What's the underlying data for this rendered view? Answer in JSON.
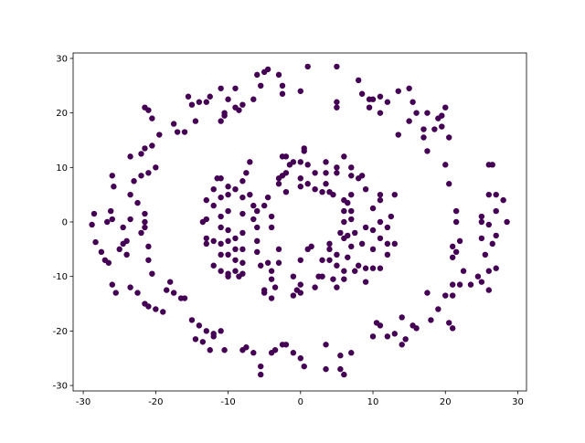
{
  "chart_data": {
    "type": "scatter",
    "title": "",
    "xlabel": "",
    "ylabel": "",
    "xlim": [
      -31.4,
      31.2
    ],
    "ylim": [
      -31,
      31
    ],
    "xticks": [
      "-30",
      "-20",
      "-10",
      "0",
      "10",
      "20",
      "30"
    ],
    "yticks": [
      "-30",
      "-20",
      "-10",
      "0",
      "10",
      "20",
      "30"
    ],
    "grid": false,
    "marker_color": "#440154",
    "points": [
      [
        -28.5,
        1.5
      ],
      [
        -28.8,
        -0.5
      ],
      [
        -28.3,
        -3.7
      ],
      [
        -27.5,
        -5.5
      ],
      [
        -27,
        -7
      ],
      [
        -26.5,
        -7.5
      ],
      [
        -26.7,
        0
      ],
      [
        -26,
        0.5
      ],
      [
        -26.2,
        2
      ],
      [
        -25.8,
        6.5
      ],
      [
        -26,
        8.5
      ],
      [
        -24.5,
        -4
      ],
      [
        -25,
        -5
      ],
      [
        -24,
        -3.5
      ],
      [
        -23.5,
        0.5
      ],
      [
        -23.5,
        5
      ],
      [
        -23.5,
        12
      ],
      [
        -22,
        12.5
      ],
      [
        -22,
        8.5
      ],
      [
        -21.5,
        13.5
      ],
      [
        -20.5,
        14
      ],
      [
        -20,
        10
      ],
      [
        -21,
        9
      ],
      [
        -22.5,
        3.5
      ],
      [
        -21.5,
        1.5
      ],
      [
        -21.5,
        0
      ],
      [
        -21.5,
        -1
      ],
      [
        -22,
        -2
      ],
      [
        -21,
        -4.5
      ],
      [
        -21,
        -7
      ],
      [
        -20.5,
        -9.5
      ],
      [
        -26,
        -11.5
      ],
      [
        -25.5,
        -13
      ],
      [
        -23.5,
        -12
      ],
      [
        -22.5,
        -13
      ],
      [
        -21.5,
        -15
      ],
      [
        -21,
        -15.5
      ],
      [
        -20,
        -16
      ],
      [
        -19,
        -16.5
      ],
      [
        -18.5,
        -12.5
      ],
      [
        -18,
        -11
      ],
      [
        -17.5,
        -13
      ],
      [
        -16.5,
        -14
      ],
      [
        -16,
        -14
      ],
      [
        -15,
        -18
      ],
      [
        -14,
        -19
      ],
      [
        -13,
        -20
      ],
      [
        -12,
        -21
      ],
      [
        -12,
        -20.5
      ],
      [
        -11,
        -20
      ],
      [
        -13.5,
        -22
      ],
      [
        -14.5,
        -21.5
      ],
      [
        -12.5,
        -23.5
      ],
      [
        -10.5,
        -23.5
      ],
      [
        -8,
        -23.5
      ],
      [
        -7.5,
        -23
      ],
      [
        -6.5,
        -24
      ],
      [
        -5.5,
        -28
      ],
      [
        -5.5,
        -26.5
      ],
      [
        -4,
        -24
      ],
      [
        -3.5,
        -23.5
      ],
      [
        -2.5,
        -22.5
      ],
      [
        -2,
        -22.5
      ],
      [
        -1,
        -24
      ],
      [
        0,
        -25
      ],
      [
        0.5,
        -26.5
      ],
      [
        3.5,
        -22.5
      ],
      [
        3.5,
        -27
      ],
      [
        5.5,
        -27
      ],
      [
        6,
        -28
      ],
      [
        5.5,
        -24.5
      ],
      [
        7,
        -24
      ],
      [
        10,
        -21
      ],
      [
        10.5,
        -18.5
      ],
      [
        11,
        -19
      ],
      [
        12,
        -21
      ],
      [
        13,
        -20.5
      ],
      [
        14,
        -17.5
      ],
      [
        14,
        -22.5
      ],
      [
        14.5,
        -21.5
      ],
      [
        15.5,
        -19
      ],
      [
        16,
        -19.5
      ],
      [
        17.5,
        -13
      ],
      [
        18,
        -18
      ],
      [
        19,
        -16
      ],
      [
        20,
        -13.5
      ],
      [
        20.5,
        -18.5
      ],
      [
        21,
        -19.5
      ],
      [
        21,
        -11.5
      ],
      [
        22,
        -11.5
      ],
      [
        21,
        -13.5
      ],
      [
        22.5,
        -9
      ],
      [
        23.5,
        -11.5
      ],
      [
        24.5,
        -10
      ],
      [
        25,
        -11
      ],
      [
        26,
        -9
      ],
      [
        26,
        -12.5
      ],
      [
        27,
        -8.5
      ],
      [
        26.5,
        -4
      ],
      [
        27,
        -2.5
      ],
      [
        26,
        -0.5
      ],
      [
        25,
        1
      ],
      [
        25,
        0
      ],
      [
        25,
        -3
      ],
      [
        28.5,
        0
      ],
      [
        27,
        2
      ],
      [
        28,
        4
      ],
      [
        27,
        5
      ],
      [
        26,
        5
      ],
      [
        26,
        10.5
      ],
      [
        26.5,
        10.5
      ],
      [
        25.5,
        -6
      ],
      [
        21.5,
        -5.5
      ],
      [
        21,
        -4.5
      ],
      [
        21,
        -6.5
      ],
      [
        22,
        -3.5
      ],
      [
        21.5,
        0
      ],
      [
        21.5,
        2
      ],
      [
        20.5,
        7
      ],
      [
        20,
        10.5
      ],
      [
        20.5,
        15.5
      ],
      [
        19.5,
        17.5
      ],
      [
        19.5,
        19.5
      ],
      [
        20,
        21
      ],
      [
        19,
        19
      ],
      [
        18.5,
        17
      ],
      [
        17.5,
        13
      ],
      [
        17,
        15.5
      ],
      [
        17,
        17
      ],
      [
        17.5,
        20
      ],
      [
        16,
        20
      ],
      [
        15.5,
        22
      ],
      [
        15,
        24.5
      ],
      [
        15,
        18.5
      ],
      [
        13.5,
        16
      ],
      [
        13.5,
        24
      ],
      [
        12,
        22
      ],
      [
        11,
        20
      ],
      [
        11,
        23
      ],
      [
        10,
        22.5
      ],
      [
        9.5,
        22.5
      ],
      [
        9.5,
        21
      ],
      [
        8.5,
        23.5
      ],
      [
        8,
        26
      ],
      [
        5,
        22
      ],
      [
        5,
        21
      ],
      [
        5,
        28.5
      ],
      [
        1,
        28.5
      ],
      [
        0,
        24
      ],
      [
        -2.5,
        25
      ],
      [
        -3,
        27
      ],
      [
        -2.5,
        23.5
      ],
      [
        -5.5,
        25
      ],
      [
        -5,
        27.5
      ],
      [
        -4.5,
        28
      ],
      [
        -6,
        27
      ],
      [
        -8.5,
        20.5
      ],
      [
        -8,
        21.5
      ],
      [
        -9,
        21
      ],
      [
        -10.5,
        20
      ],
      [
        -10.5,
        19.5
      ],
      [
        -11,
        18.5
      ],
      [
        -10,
        22.5
      ],
      [
        -11,
        24.5
      ],
      [
        -12.5,
        23
      ],
      [
        -13,
        22
      ],
      [
        -14.5,
        18.5
      ],
      [
        -14,
        22
      ],
      [
        -15,
        21.5
      ],
      [
        -15.5,
        23
      ],
      [
        -16,
        16.5
      ],
      [
        -17,
        16.5
      ],
      [
        -17.5,
        18
      ],
      [
        -19.5,
        16
      ],
      [
        -20.5,
        19
      ],
      [
        -21,
        20.5
      ],
      [
        -21.5,
        21
      ],
      [
        -9,
        24.5
      ],
      [
        -6.5,
        22.5
      ],
      [
        -23,
        7.5
      ],
      [
        -24,
        -6
      ],
      [
        -24.5,
        -1
      ],
      [
        -13,
        4
      ],
      [
        -13,
        0.5
      ],
      [
        -13,
        -3
      ],
      [
        -13,
        -4
      ],
      [
        -12,
        -3.5
      ],
      [
        -12,
        3
      ],
      [
        -12,
        6
      ],
      [
        -11.5,
        8
      ],
      [
        -11,
        8
      ],
      [
        -11,
        4.5
      ],
      [
        -11,
        1
      ],
      [
        -11,
        -1
      ],
      [
        -11,
        -4
      ],
      [
        -11,
        -6
      ],
      [
        -11,
        -9
      ],
      [
        -10,
        -9.5
      ],
      [
        -10,
        -10
      ],
      [
        -10,
        -6
      ],
      [
        -10,
        -3.5
      ],
      [
        -10,
        -1.5
      ],
      [
        -10,
        2
      ],
      [
        -10,
        5
      ],
      [
        -10,
        6.5
      ],
      [
        -9,
        6
      ],
      [
        -9,
        -3
      ],
      [
        -9,
        -5
      ],
      [
        -9,
        -7
      ],
      [
        -9,
        -9
      ],
      [
        -8.5,
        -10
      ],
      [
        -8,
        -9.5
      ],
      [
        -8,
        -7.5
      ],
      [
        -8,
        -5
      ],
      [
        -8,
        -2
      ],
      [
        -8,
        1.5
      ],
      [
        -8,
        4.5
      ],
      [
        -8,
        7.5
      ],
      [
        -7.5,
        9
      ],
      [
        -7,
        11
      ],
      [
        -7,
        5
      ],
      [
        -6.5,
        3
      ],
      [
        -6.5,
        0.5
      ],
      [
        -6,
        -1
      ],
      [
        -6,
        -3.5
      ],
      [
        -6,
        -5.5
      ],
      [
        -5.5,
        -8
      ],
      [
        -5,
        -12.5
      ],
      [
        -5,
        -13
      ],
      [
        -4.5,
        -7.5
      ],
      [
        -4,
        -9
      ],
      [
        -4,
        -10.5
      ],
      [
        -4,
        -14
      ],
      [
        -3.5,
        -12
      ],
      [
        -3,
        -7.5
      ],
      [
        -3,
        -5
      ],
      [
        -3,
        7
      ],
      [
        -3,
        8
      ],
      [
        -2.5,
        8.5
      ],
      [
        -2.5,
        12
      ],
      [
        -2,
        12
      ],
      [
        -2,
        9
      ],
      [
        -2,
        5.5
      ],
      [
        -1.5,
        10.5
      ],
      [
        -1,
        11
      ],
      [
        -1,
        -10
      ],
      [
        -1,
        -13.5
      ],
      [
        -0.5,
        -12.5
      ],
      [
        0,
        -13
      ],
      [
        0,
        -11.5
      ],
      [
        0,
        -7
      ],
      [
        0,
        6.5
      ],
      [
        0,
        8
      ],
      [
        0,
        11
      ],
      [
        0.5,
        13.5
      ],
      [
        0.5,
        13
      ],
      [
        1,
        10.5
      ],
      [
        1,
        7
      ],
      [
        1,
        -5
      ],
      [
        1.5,
        -4.5
      ],
      [
        2,
        -12
      ],
      [
        2,
        9
      ],
      [
        2,
        6
      ],
      [
        2.5,
        -10
      ],
      [
        3,
        -10
      ],
      [
        3,
        -7
      ],
      [
        3,
        5.5
      ],
      [
        3.5,
        7
      ],
      [
        3.5,
        9
      ],
      [
        3.5,
        11
      ],
      [
        4,
        -7
      ],
      [
        4,
        -5
      ],
      [
        4,
        -4
      ],
      [
        4,
        5.5
      ],
      [
        4.5,
        5
      ],
      [
        4.5,
        -10.5
      ],
      [
        5,
        -12
      ],
      [
        5,
        -8
      ],
      [
        5,
        -6
      ],
      [
        5,
        9
      ],
      [
        5,
        10
      ],
      [
        5.5,
        -2
      ],
      [
        6,
        -9
      ],
      [
        6,
        -10.5
      ],
      [
        6,
        -3
      ],
      [
        6,
        0
      ],
      [
        6,
        2
      ],
      [
        6,
        4
      ],
      [
        6,
        12
      ],
      [
        6.5,
        -6.5
      ],
      [
        6.5,
        -2.5
      ],
      [
        6.5,
        3.5
      ],
      [
        7,
        8.5
      ],
      [
        7,
        10
      ],
      [
        7,
        5
      ],
      [
        7,
        2
      ],
      [
        7,
        0.5
      ],
      [
        7,
        -4.5
      ],
      [
        7.5,
        -2
      ],
      [
        7.5,
        -9
      ],
      [
        8,
        -8
      ],
      [
        8,
        8
      ],
      [
        8.5,
        8.5
      ],
      [
        8.5,
        -4
      ],
      [
        9,
        -8.5
      ],
      [
        9,
        -11
      ],
      [
        9,
        -1
      ],
      [
        9,
        6
      ],
      [
        10,
        -8.5
      ],
      [
        10,
        -5
      ],
      [
        10,
        -1.5
      ],
      [
        10,
        2.5
      ],
      [
        11,
        -3
      ],
      [
        11,
        0
      ],
      [
        11,
        4
      ],
      [
        11,
        5
      ],
      [
        11,
        -8.5
      ],
      [
        12,
        -6
      ],
      [
        12,
        -4
      ],
      [
        12,
        -1
      ],
      [
        12.5,
        1
      ],
      [
        13,
        5
      ],
      [
        13,
        -4
      ],
      [
        -12,
        -8
      ],
      [
        -13.5,
        0
      ],
      [
        -4,
        -1
      ],
      [
        -5,
        3
      ],
      [
        -6,
        2
      ],
      [
        -4.5,
        4.5
      ],
      [
        -4,
        1
      ]
    ]
  }
}
